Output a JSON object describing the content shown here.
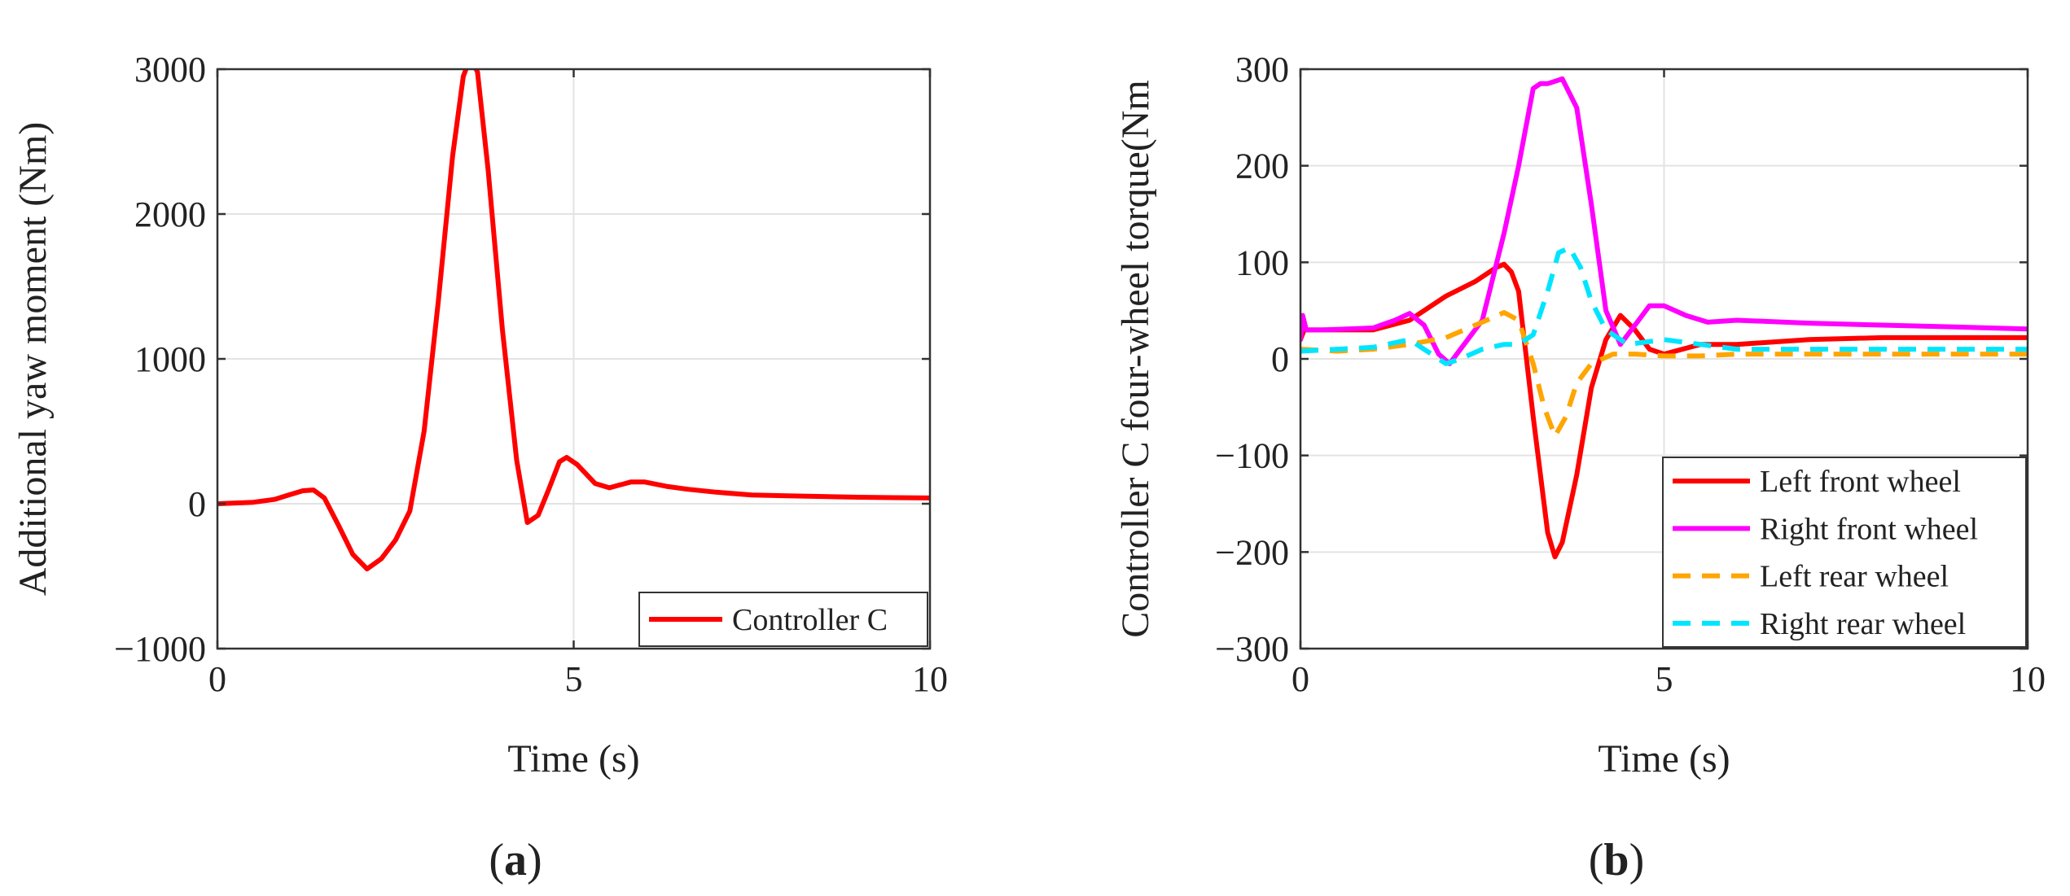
{
  "chart_data": [
    {
      "type": "line",
      "panel_label_prefix": "(",
      "panel_label_letter": "a",
      "panel_label_suffix": ")",
      "xlabel": "Time (s)",
      "ylabel": "Additional yaw moment (Nm)",
      "xlim": [
        0,
        10
      ],
      "ylim": [
        -1000,
        3000
      ],
      "xticks": [
        0,
        5,
        10
      ],
      "yticks": [
        -1000,
        0,
        1000,
        2000,
        3000
      ],
      "xtick_labels": [
        "0",
        "5",
        "10"
      ],
      "ytick_labels": [
        "−1000",
        "0",
        "1000",
        "2000",
        "3000"
      ],
      "grid": true,
      "legend_position": "bottom-right",
      "series": [
        {
          "name": "Controller C",
          "color": "#ff0000",
          "dash": "solid",
          "x": [
            0,
            0.5,
            0.8,
            1.0,
            1.2,
            1.35,
            1.5,
            1.7,
            1.9,
            2.1,
            2.3,
            2.5,
            2.7,
            2.9,
            3.1,
            3.3,
            3.45,
            3.55,
            3.65,
            3.8,
            4.0,
            4.2,
            4.35,
            4.5,
            4.65,
            4.8,
            4.9,
            5.05,
            5.3,
            5.5,
            5.8,
            6.0,
            6.3,
            6.6,
            7.0,
            7.5,
            8.0,
            8.5,
            9.0,
            9.5,
            10
          ],
          "y": [
            0,
            10,
            30,
            60,
            90,
            95,
            40,
            -150,
            -350,
            -450,
            -380,
            -250,
            -50,
            500,
            1400,
            2400,
            2950,
            3080,
            2980,
            2300,
            1200,
            300,
            -130,
            -80,
            100,
            290,
            320,
            270,
            140,
            110,
            150,
            150,
            120,
            100,
            80,
            60,
            55,
            50,
            45,
            42,
            40
          ]
        }
      ]
    },
    {
      "type": "line",
      "panel_label_prefix": "(",
      "panel_label_letter": "b",
      "panel_label_suffix": ")",
      "xlabel": "Time (s)",
      "ylabel": "Controller C four-wheel torque(Nm",
      "xlim": [
        0,
        10
      ],
      "ylim": [
        -300,
        300
      ],
      "xticks": [
        0,
        5,
        10
      ],
      "yticks": [
        -300,
        -200,
        -100,
        0,
        100,
        200,
        300
      ],
      "xtick_labels": [
        "0",
        "5",
        "10"
      ],
      "ytick_labels": [
        "−300",
        "−200",
        "−100",
        "0",
        "100",
        "200",
        "300"
      ],
      "grid": true,
      "legend_position": "bottom-right",
      "series": [
        {
          "name": "Left front wheel",
          "color": "#ff0000",
          "dash": "solid",
          "x": [
            0,
            0.05,
            0.3,
            1.0,
            1.5,
            2.0,
            2.4,
            2.7,
            2.8,
            2.9,
            3.0,
            3.2,
            3.4,
            3.5,
            3.6,
            3.8,
            4.0,
            4.2,
            4.4,
            4.6,
            4.8,
            5.0,
            5.5,
            6.0,
            7.0,
            8.0,
            9.0,
            10
          ],
          "y": [
            20,
            30,
            30,
            30,
            40,
            65,
            80,
            95,
            98,
            90,
            70,
            -60,
            -180,
            -205,
            -190,
            -120,
            -30,
            20,
            45,
            30,
            10,
            5,
            15,
            15,
            20,
            22,
            22,
            22
          ]
        },
        {
          "name": "Right front wheel",
          "color": "#ff00ff",
          "dash": "solid",
          "x": [
            0,
            0.03,
            0.08,
            0.3,
            1.0,
            1.3,
            1.5,
            1.7,
            1.9,
            2.05,
            2.2,
            2.5,
            2.8,
            3.0,
            3.2,
            3.3,
            3.4,
            3.6,
            3.8,
            4.0,
            4.2,
            4.4,
            4.6,
            4.8,
            5.0,
            5.3,
            5.6,
            6.0,
            7.0,
            8.0,
            9.0,
            10
          ],
          "y": [
            20,
            45,
            30,
            30,
            32,
            40,
            47,
            35,
            5,
            -5,
            10,
            40,
            130,
            200,
            280,
            285,
            285,
            290,
            260,
            160,
            50,
            15,
            35,
            55,
            55,
            45,
            38,
            40,
            37,
            35,
            33,
            31
          ]
        },
        {
          "name": "Left rear wheel",
          "color": "#ffa500",
          "dash": "dashed",
          "x": [
            0,
            0.5,
            1.0,
            1.5,
            2.0,
            2.5,
            2.8,
            3.0,
            3.2,
            3.35,
            3.5,
            3.65,
            3.8,
            4.0,
            4.3,
            4.6,
            5.0,
            5.5,
            6.0,
            7.0,
            8.0,
            10
          ],
          "y": [
            10,
            8,
            10,
            15,
            22,
            38,
            48,
            40,
            -5,
            -50,
            -80,
            -60,
            -25,
            -5,
            5,
            5,
            3,
            3,
            5,
            5,
            5,
            5
          ]
        },
        {
          "name": "Right rear wheel",
          "color": "#00e5ff",
          "dash": "dashed",
          "x": [
            0,
            0.5,
            1.0,
            1.5,
            1.8,
            2.0,
            2.2,
            2.5,
            2.8,
            3.0,
            3.2,
            3.4,
            3.55,
            3.7,
            3.85,
            4.0,
            4.2,
            4.5,
            5.0,
            5.5,
            6.0,
            7.0,
            8.0,
            10
          ],
          "y": [
            8,
            10,
            12,
            20,
            5,
            -5,
            0,
            10,
            15,
            15,
            25,
            70,
            110,
            115,
            95,
            60,
            30,
            15,
            20,
            15,
            10,
            10,
            10,
            10
          ]
        }
      ]
    }
  ]
}
